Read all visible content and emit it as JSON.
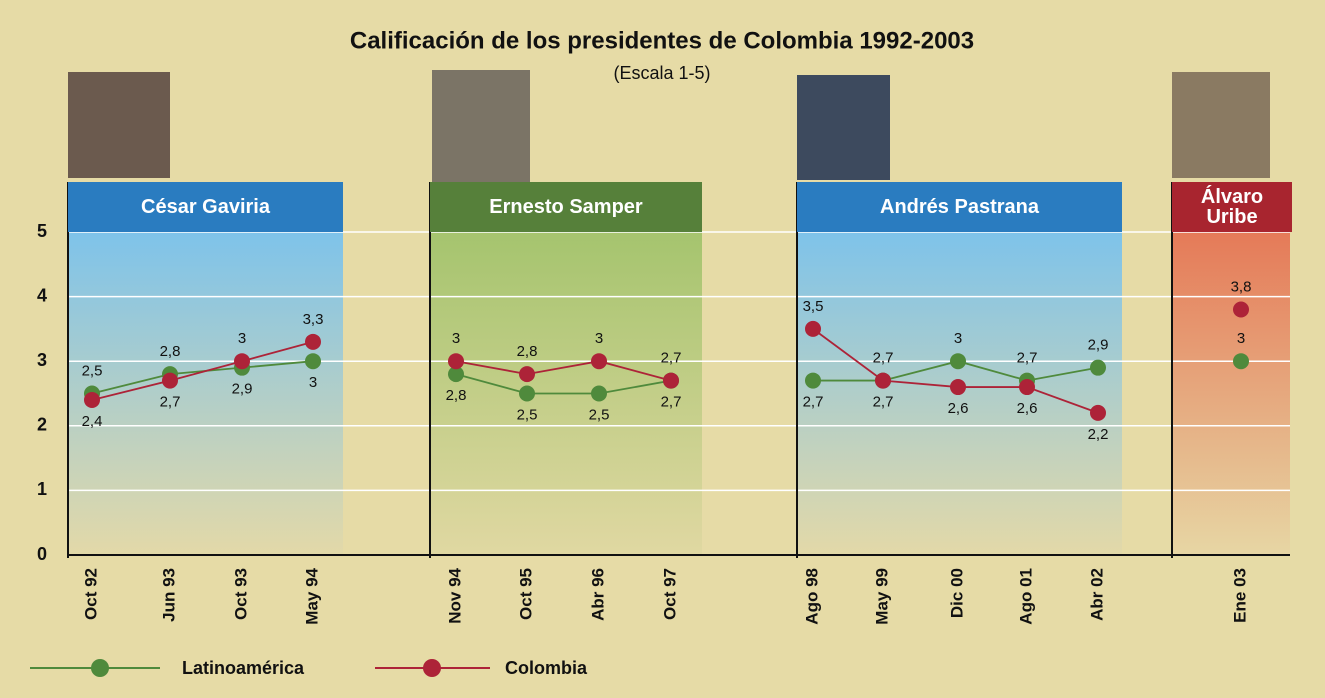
{
  "chart_data": {
    "type": "line",
    "title": "Calificación de los presidentes de Colombia 1992-2003",
    "subtitle": "(Escala 1-5)",
    "ylim": [
      0,
      5
    ],
    "yticks": [
      0,
      1,
      2,
      3,
      4,
      5
    ],
    "grid": true,
    "series": [
      {
        "name": "Latinoamérica",
        "color": "#4f8a3c"
      },
      {
        "name": "Colombia",
        "color": "#ad2338"
      }
    ],
    "panels": [
      {
        "name": "César Gaviria",
        "color": "#2a7cc0",
        "categories": [
          "Oct 92",
          "Jun 93",
          "Oct 93",
          "May 94"
        ],
        "values": [
          [
            2.5,
            2.8,
            2.9,
            3
          ],
          [
            2.4,
            2.7,
            3,
            3.3
          ]
        ],
        "value_labels": [
          [
            "2,5",
            "2,8",
            "2,9",
            "3"
          ],
          [
            "2,4",
            "2,7",
            "3",
            "3,3"
          ]
        ]
      },
      {
        "name": "Ernesto Samper",
        "color": "#56803a",
        "categories": [
          "Nov 94",
          "Oct 95",
          "Abr 96",
          "Oct 97"
        ],
        "values": [
          [
            2.8,
            2.5,
            2.5,
            2.7
          ],
          [
            3,
            2.8,
            3,
            2.7
          ]
        ],
        "value_labels": [
          [
            "2,8",
            "2,5",
            "2,5",
            "2,7"
          ],
          [
            "3",
            "2,8",
            "3",
            "2,7"
          ]
        ]
      },
      {
        "name": "Andrés Pastrana",
        "color": "#2a7cc0",
        "categories": [
          "Ago 98",
          "May 99",
          "Dic 00",
          "Ago 01",
          "Abr 02"
        ],
        "values": [
          [
            2.7,
            2.7,
            3,
            2.7,
            2.9
          ],
          [
            3.5,
            2.7,
            2.6,
            2.6,
            2.2
          ]
        ],
        "value_labels": [
          [
            "2,7",
            "2,7",
            "3",
            "2,7",
            "2,9"
          ],
          [
            "3,5",
            "2,7",
            "2,6",
            "2,6",
            "2,2"
          ]
        ]
      },
      {
        "name": "Álvaro Uribe",
        "color": "#a8252f",
        "categories": [
          "Ene 03"
        ],
        "values": [
          [
            3
          ],
          [
            3.8
          ]
        ],
        "value_labels": [
          [
            "3"
          ],
          [
            "3,8"
          ]
        ]
      }
    ]
  }
}
